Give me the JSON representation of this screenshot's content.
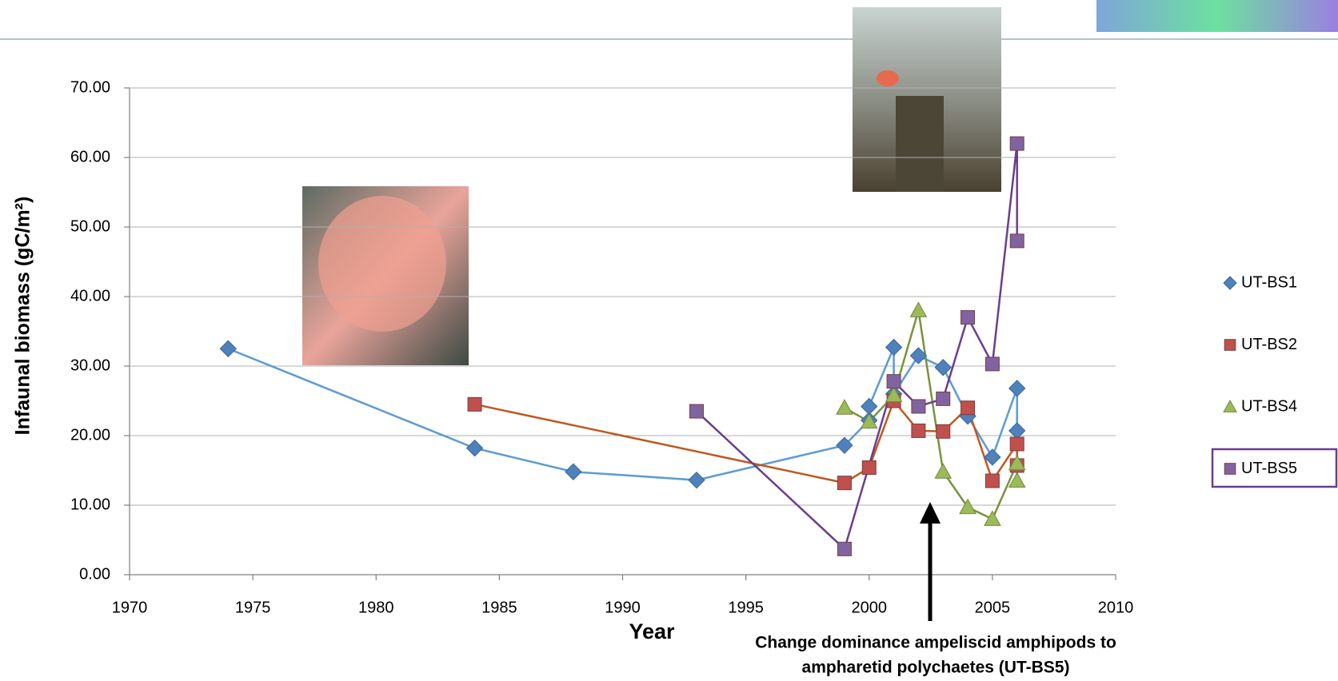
{
  "chart_data": {
    "type": "line",
    "y_label": "Infaunal biomass (gC/m²)",
    "x_label": "Year",
    "annotation": [
      "Change dominance ampeliscid amphipods to",
      "ampharetid polychaetes (UT-BS5)"
    ],
    "xlim": [
      1970,
      2010
    ],
    "xticks": [
      1970,
      1975,
      1980,
      1985,
      1990,
      1995,
      2000,
      2005,
      2010
    ],
    "ylim": [
      0,
      70
    ],
    "yticks": [
      {
        "value": 0,
        "label": "0.00"
      },
      {
        "value": 10,
        "label": "10.00"
      },
      {
        "value": 20,
        "label": "20.00"
      },
      {
        "value": 30,
        "label": "30.00"
      },
      {
        "value": 40,
        "label": "40.00"
      },
      {
        "value": 50,
        "label": "50.00"
      },
      {
        "value": 60,
        "label": "60.00"
      },
      {
        "value": 70,
        "label": "70.00"
      }
    ],
    "grid": true,
    "series": [
      {
        "name": "UT-BS1",
        "color": "#4f81bd",
        "line_color": "#5b9bd5",
        "marker": "diamond",
        "x": [
          1974,
          1984,
          1988,
          1993,
          1999,
          2000,
          2000,
          2001,
          2001,
          2002,
          2003,
          2004,
          2005,
          2006,
          2006
        ],
        "values": [
          32.5,
          18.2,
          14.8,
          13.6,
          18.6,
          22.2,
          24.2,
          32.7,
          26.0,
          31.5,
          29.8,
          22.8,
          16.9,
          26.8,
          20.7
        ]
      },
      {
        "name": "UT-BS2",
        "color": "#c0504d",
        "line_color": "#c0581c",
        "marker": "square",
        "x": [
          1984,
          1999,
          2000,
          2001,
          2002,
          2003,
          2004,
          2005,
          2006,
          2006
        ],
        "values": [
          24.5,
          13.2,
          15.4,
          25.0,
          20.7,
          20.6,
          24.0,
          13.5,
          18.8,
          15.7
        ]
      },
      {
        "name": "UT-BS4",
        "color": "#9bbb59",
        "line_color": "#77933c",
        "marker": "triangle",
        "x": [
          1999,
          2000,
          2001,
          2002,
          2003,
          2004,
          2005,
          2006,
          2006
        ],
        "values": [
          24.0,
          22.0,
          25.8,
          38.0,
          14.8,
          9.7,
          8.0,
          16.0,
          13.5
        ]
      },
      {
        "name": "UT-BS5",
        "color": "#8064a2",
        "line_color": "#6a3d8f",
        "marker": "square",
        "x": [
          1993,
          1999,
          2001,
          2002,
          2003,
          2004,
          2005,
          2006,
          2006
        ],
        "values": [
          23.5,
          3.7,
          27.8,
          24.2,
          25.3,
          37.0,
          30.3,
          62.0,
          48.0
        ]
      }
    ]
  }
}
